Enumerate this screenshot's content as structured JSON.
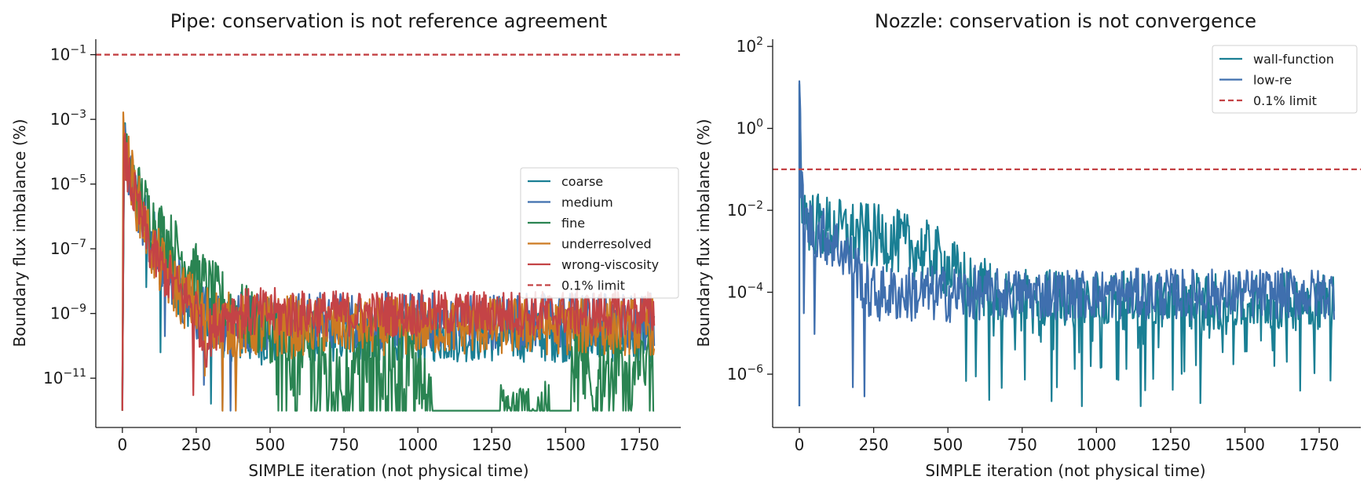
{
  "figure": {
    "background": "#ffffff",
    "panels": [
      {
        "title": "Pipe: conservation is not reference agreement",
        "xlabel": "SIMPLE iteration (not physical time)",
        "ylabel": "Boundary flux imbalance (%)",
        "x_ticks": [
          "0",
          "250",
          "500",
          "750",
          "1000",
          "1250",
          "1500",
          "1750"
        ],
        "y_ticks": [
          {
            "base": "10",
            "exp": "−1"
          },
          {
            "base": "10",
            "exp": "−3"
          },
          {
            "base": "10",
            "exp": "−5"
          },
          {
            "base": "10",
            "exp": "−7"
          },
          {
            "base": "10",
            "exp": "−9"
          },
          {
            "base": "10",
            "exp": "−11"
          }
        ],
        "legend": [
          "coarse",
          "medium",
          "fine",
          "underresolved",
          "wrong-viscosity",
          "0.1% limit"
        ]
      },
      {
        "title": "Nozzle: conservation is not convergence",
        "xlabel": "SIMPLE iteration (not physical time)",
        "ylabel": "Boundary flux imbalance (%)",
        "x_ticks": [
          "0",
          "250",
          "500",
          "750",
          "1000",
          "1250",
          "1500",
          "1750"
        ],
        "y_ticks": [
          {
            "base": "10",
            "exp": "2"
          },
          {
            "base": "10",
            "exp": "0"
          },
          {
            "base": "10",
            "exp": "−2"
          },
          {
            "base": "10",
            "exp": "−4"
          },
          {
            "base": "10",
            "exp": "−6"
          }
        ],
        "legend": [
          "wall-function",
          "low-re",
          "0.1% limit"
        ]
      }
    ]
  },
  "chart_data": [
    {
      "type": "line",
      "title": "Pipe: conservation is not reference agreement",
      "xlabel": "SIMPLE iteration (not physical time)",
      "ylabel": "Boundary flux imbalance (%)",
      "xlim": [
        -90,
        1890
      ],
      "ylim": [
        3e-13,
        0.3
      ],
      "yscale": "log",
      "xticks": [
        0,
        250,
        500,
        750,
        1000,
        1250,
        1500,
        1750
      ],
      "yticks": [
        0.1,
        0.001,
        1e-05,
        1e-07,
        1e-09,
        1e-11
      ],
      "grid": false,
      "legend_position": "center-right",
      "series": [
        {
          "name": "coarse",
          "color": "#1a7f94",
          "x": [
            0,
            5,
            20,
            40,
            60,
            90,
            120,
            160,
            200,
            250,
            300,
            350,
            400,
            500,
            1000,
            1800
          ],
          "y": [
            1e-12,
            0.00015,
            3e-05,
            5e-06,
            1.5e-06,
            5e-07,
            1e-07,
            2e-08,
            5e-09,
            1.5e-09,
            6e-10,
            3e-10,
            2e-10,
            2e-10,
            2e-10,
            2e-10
          ],
          "noise": 0.9,
          "dips": [
            80,
            130,
            300
          ]
        },
        {
          "name": "medium",
          "color": "#3f6fae",
          "x": [
            0,
            5,
            20,
            40,
            60,
            90,
            120,
            160,
            200,
            250,
            300,
            350,
            400,
            500,
            1000,
            1800
          ],
          "y": [
            1e-12,
            0.00012,
            2e-05,
            4e-06,
            1e-06,
            3e-07,
            8e-08,
            1.5e-08,
            4e-09,
            1.5e-09,
            8e-10,
            6e-10,
            6e-10,
            6e-10,
            6e-10,
            6e-10
          ],
          "noise": 1.0,
          "dips": [
            145,
            275,
            340,
            365
          ]
        },
        {
          "name": "fine",
          "color": "#2a8452",
          "x": [
            0,
            5,
            20,
            60,
            100,
            150,
            200,
            250,
            300,
            350,
            400,
            450,
            500,
            550,
            700,
            900,
            1000,
            1050,
            1100,
            1280,
            1450,
            1520,
            1800
          ],
          "y": [
            1e-12,
            0.0001,
            3e-05,
            4e-06,
            8e-07,
            2e-07,
            6e-08,
            1.5e-08,
            5e-09,
            2e-09,
            1e-09,
            5e-10,
            3e-10,
            1.5e-10,
            1e-10,
            1e-10,
            1e-10,
            1e-12,
            1e-12,
            1e-12,
            1e-12,
            5e-11,
            5e-11
          ],
          "noise": 1.0,
          "bursts": [
            [
              500,
              1050
            ],
            [
              1280,
              1445
            ],
            [
              1520,
              1800
            ]
          ]
        },
        {
          "name": "underresolved",
          "color": "#cc7a22",
          "x": [
            0,
            3,
            20,
            50,
            100,
            150,
            200,
            250,
            300,
            350,
            400,
            500,
            1800
          ],
          "y": [
            1e-12,
            0.00025,
            4e-05,
            3e-06,
            1e-07,
            1.5e-08,
            4e-09,
            1.5e-09,
            8e-10,
            5e-10,
            4e-10,
            4e-10,
            4e-10
          ],
          "noise": 1.0,
          "dips": [
            280,
            340,
            385
          ]
        },
        {
          "name": "wrong-viscosity",
          "color": "#c44346",
          "x": [
            0,
            5,
            20,
            50,
            100,
            150,
            200,
            250,
            280,
            300,
            350,
            380,
            400,
            500,
            1800
          ],
          "y": [
            1e-12,
            0.0001,
            2e-05,
            2e-06,
            8e-08,
            1.5e-08,
            4e-09,
            1.5e-09,
            1e-10,
            3e-10,
            1e-09,
            1.2e-09,
            1e-09,
            1e-09,
            1e-09
          ],
          "noise": 0.8,
          "dips": [
            240
          ]
        },
        {
          "name": "0.1% limit",
          "color": "#c44346",
          "dashed": true,
          "x": [
            -90,
            1890
          ],
          "y": [
            0.1,
            0.1
          ]
        }
      ]
    },
    {
      "type": "line",
      "title": "Nozzle: conservation is not convergence",
      "xlabel": "SIMPLE iteration (not physical time)",
      "ylabel": "Boundary flux imbalance (%)",
      "xlim": [
        -90,
        1890
      ],
      "ylim": [
        5e-08,
        150
      ],
      "yscale": "log",
      "xticks": [
        0,
        250,
        500,
        750,
        1000,
        1250,
        1500,
        1750
      ],
      "yticks": [
        100,
        1,
        0.01,
        0.0001,
        1e-06
      ],
      "grid": false,
      "legend_position": "top-right",
      "series": [
        {
          "name": "wall-function",
          "color": "#1a7f94",
          "x": [
            0,
            5,
            15,
            40,
            80,
            150,
            300,
            450,
            550,
            700,
            900,
            1200,
            1500,
            1800
          ],
          "y": [
            40,
            0.05,
            0.01,
            0.005,
            0.004,
            0.003,
            0.002,
            0.0008,
            0.0002,
            8e-05,
            7e-05,
            6e-05,
            6e-05,
            6e-05
          ],
          "noise": 0.8,
          "dips": [
            560,
            640,
            680,
            760,
            850,
            950,
            1150,
            1350
          ]
        },
        {
          "name": "low-re",
          "color": "#3f6fae",
          "x": [
            0,
            5,
            20,
            60,
            100,
            150,
            200,
            230,
            260,
            300,
            1800
          ],
          "y": [
            40,
            0.05,
            0.005,
            0.003,
            0.002,
            0.001,
            0.0003,
            0.0001,
            9e-05,
            9e-05,
            9e-05
          ],
          "noise": 0.7,
          "dips": [
            15,
            50,
            180,
            220
          ]
        },
        {
          "name": "0.1% limit",
          "color": "#c44346",
          "dashed": true,
          "x": [
            -90,
            1890
          ],
          "y": [
            0.1,
            0.1
          ]
        }
      ]
    }
  ]
}
